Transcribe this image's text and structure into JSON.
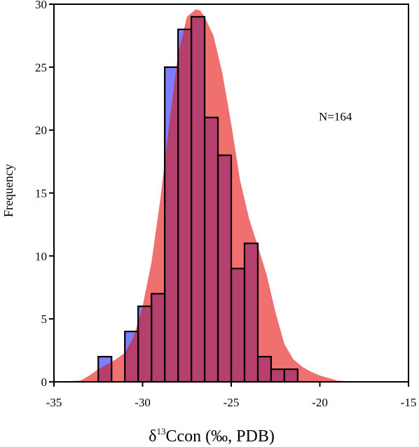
{
  "chart_data": {
    "type": "bar",
    "subtype": "histogram-with-density",
    "xlabel": {
      "prefix": "δ",
      "superscript": "13",
      "suffix": "Ccon (‰, PDB)"
    },
    "ylabel": "Frequency",
    "annotation": "N=164",
    "xlim": [
      -35,
      -15
    ],
    "ylim": [
      0,
      30
    ],
    "x_ticks": [
      -35,
      -30,
      -25,
      -20,
      -15
    ],
    "y_ticks": [
      0,
      5,
      10,
      15,
      20,
      25,
      30
    ],
    "bin_width": 0.75,
    "bins": [
      {
        "start": -32.5,
        "end": -31.75,
        "value": 2
      },
      {
        "start": -31.75,
        "end": -31.0,
        "value": 0
      },
      {
        "start": -31.0,
        "end": -30.25,
        "value": 4
      },
      {
        "start": -30.25,
        "end": -29.5,
        "value": 6
      },
      {
        "start": -29.5,
        "end": -28.75,
        "value": 7
      },
      {
        "start": -28.75,
        "end": -28.0,
        "value": 25
      },
      {
        "start": -28.0,
        "end": -27.25,
        "value": 28
      },
      {
        "start": -27.25,
        "end": -26.5,
        "value": 29
      },
      {
        "start": -26.5,
        "end": -25.75,
        "value": 21
      },
      {
        "start": -25.75,
        "end": -25.0,
        "value": 18
      },
      {
        "start": -25.0,
        "end": -24.25,
        "value": 9
      },
      {
        "start": -24.25,
        "end": -23.5,
        "value": 11
      },
      {
        "start": -23.5,
        "end": -22.75,
        "value": 2
      },
      {
        "start": -22.75,
        "end": -22.0,
        "value": 1
      },
      {
        "start": -22.0,
        "end": -21.25,
        "value": 1
      }
    ],
    "density_curve": {
      "x": [
        -35,
        -33.5,
        -33,
        -32.5,
        -32,
        -31.5,
        -31,
        -30.5,
        -30,
        -29.5,
        -29,
        -28.5,
        -28,
        -27.5,
        -27,
        -26.75,
        -26.5,
        -26,
        -25.5,
        -25,
        -24.5,
        -24,
        -23.5,
        -23,
        -22.5,
        -22,
        -21.5,
        -21,
        -20.5,
        -20,
        -19.5,
        -19,
        -18,
        -17
      ],
      "y": [
        0,
        0.1,
        0.5,
        1.0,
        1.4,
        1.8,
        2.3,
        3.6,
        6.0,
        9.5,
        14.5,
        20.5,
        26.0,
        29.0,
        29.6,
        29.5,
        29.0,
        27.5,
        24.5,
        20.5,
        16.0,
        13.0,
        10.8,
        8.5,
        5.5,
        3.0,
        1.8,
        1.2,
        0.8,
        0.5,
        0.3,
        0.1,
        0.02,
        0
      ]
    },
    "colors": {
      "bar_fill": "#7d7dff",
      "density_fill": "#f07070",
      "overlap": "#b5406e",
      "bar_edge": "#000000",
      "axis": "#000000"
    },
    "grid": false,
    "legend": "none"
  }
}
